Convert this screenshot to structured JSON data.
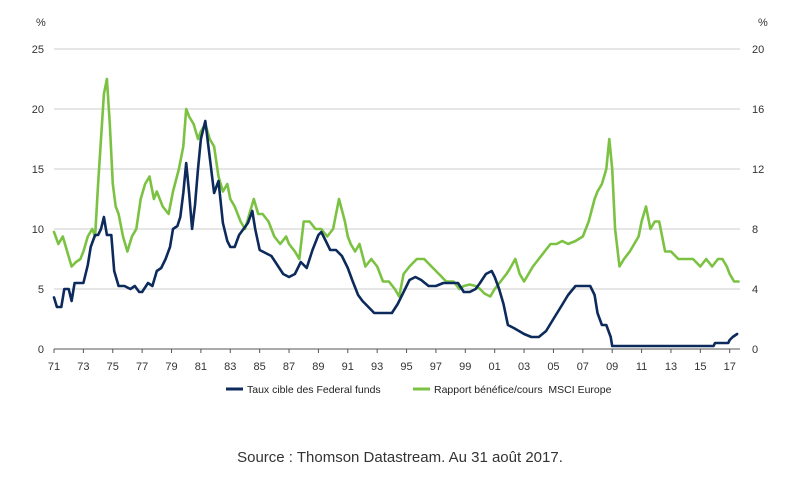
{
  "chart_data": {
    "type": "line",
    "title": "",
    "left_axis_unit": "%",
    "right_axis_unit": "%",
    "ylim_left": [
      0,
      25
    ],
    "ylim_right": [
      0,
      20
    ],
    "yticks_left": [
      0,
      5,
      10,
      15,
      20,
      25
    ],
    "yticks_right": [
      0,
      4,
      8,
      12,
      16,
      20
    ],
    "xlim": [
      1971,
      2017.7
    ],
    "x_ticks": [
      1971,
      1973,
      1975,
      1977,
      1979,
      1981,
      1983,
      1985,
      1987,
      1989,
      1991,
      1993,
      1995,
      1997,
      1999,
      2001,
      2003,
      2005,
      2007,
      2009,
      2011,
      2013,
      2015,
      2017
    ],
    "x_tick_labels": [
      "71",
      "73",
      "75",
      "77",
      "79",
      "81",
      "83",
      "85",
      "87",
      "89",
      "91",
      "93",
      "95",
      "97",
      "99",
      "01",
      "03",
      "05",
      "07",
      "09",
      "11",
      "13",
      "15",
      "17"
    ],
    "grid": "horizontal",
    "legend_position": "bottom",
    "colors": {
      "fed": "#0d2a5c",
      "msci": "#7cc242",
      "grid": "#cccccc",
      "axis": "#555555"
    },
    "series": [
      {
        "name": "Taux cible des Federal funds",
        "axis": "left",
        "x": [
          1971.0,
          1971.2,
          1971.5,
          1971.7,
          1972.0,
          1972.2,
          1972.4,
          1972.8,
          1973.0,
          1973.3,
          1973.5,
          1973.8,
          1974.0,
          1974.2,
          1974.4,
          1974.6,
          1974.9,
          1975.1,
          1975.4,
          1975.8,
          1976.2,
          1976.5,
          1976.8,
          1977.0,
          1977.4,
          1977.7,
          1978.0,
          1978.3,
          1978.6,
          1978.9,
          1979.1,
          1979.4,
          1979.6,
          1979.8,
          1980.0,
          1980.2,
          1980.4,
          1980.6,
          1980.8,
          1981.0,
          1981.3,
          1981.6,
          1981.9,
          1982.2,
          1982.5,
          1982.8,
          1983.0,
          1983.3,
          1983.6,
          1983.9,
          1984.2,
          1984.5,
          1984.7,
          1985.0,
          1985.4,
          1985.8,
          1986.2,
          1986.6,
          1987.0,
          1987.4,
          1987.8,
          1988.2,
          1988.6,
          1989.0,
          1989.2,
          1989.5,
          1989.8,
          1990.2,
          1990.6,
          1991.0,
          1991.3,
          1991.7,
          1992.0,
          1992.4,
          1992.8,
          1993.5,
          1994.0,
          1994.4,
          1994.8,
          1995.2,
          1995.6,
          1996.0,
          1996.5,
          1997.0,
          1997.5,
          1998.0,
          1998.5,
          1998.9,
          1999.3,
          1999.7,
          2000.0,
          2000.4,
          2000.8,
          2001.0,
          2001.3,
          2001.6,
          2001.9,
          2002.3,
          2003.0,
          2003.5,
          2004.0,
          2004.5,
          2005.0,
          2005.5,
          2006.0,
          2006.5,
          2007.0,
          2007.5,
          2007.8,
          2008.0,
          2008.3,
          2008.6,
          2008.9,
          2009.0,
          2010.0,
          2012.0,
          2014.0,
          2015.9,
          2016.0,
          2016.9,
          2017.0,
          2017.2,
          2017.5
        ],
        "values": [
          4.3,
          3.5,
          3.5,
          5.0,
          5.0,
          4.0,
          5.5,
          5.5,
          5.5,
          7.0,
          8.5,
          9.5,
          9.5,
          10.0,
          11.0,
          9.5,
          9.5,
          6.5,
          5.25,
          5.25,
          5.0,
          5.25,
          4.75,
          4.75,
          5.5,
          5.25,
          6.5,
          6.75,
          7.5,
          8.5,
          10.0,
          10.25,
          11.0,
          13.0,
          15.5,
          13.0,
          10.0,
          12.0,
          15.0,
          17.5,
          19.0,
          16.0,
          13.0,
          14.0,
          10.5,
          9.0,
          8.5,
          8.5,
          9.5,
          10.0,
          10.5,
          11.5,
          10.0,
          8.25,
          8.0,
          7.75,
          7.0,
          6.25,
          6.0,
          6.25,
          7.25,
          6.75,
          8.25,
          9.5,
          9.75,
          9.0,
          8.25,
          8.25,
          7.75,
          6.75,
          5.75,
          4.5,
          4.0,
          3.5,
          3.0,
          3.0,
          3.0,
          3.75,
          4.75,
          5.75,
          6.0,
          5.75,
          5.25,
          5.25,
          5.5,
          5.5,
          5.5,
          4.75,
          4.75,
          5.0,
          5.5,
          6.25,
          6.5,
          6.0,
          5.0,
          3.75,
          2.0,
          1.75,
          1.25,
          1.0,
          1.0,
          1.5,
          2.5,
          3.5,
          4.5,
          5.25,
          5.25,
          5.25,
          4.5,
          3.0,
          2.0,
          2.0,
          1.0,
          0.25,
          0.25,
          0.25,
          0.25,
          0.25,
          0.5,
          0.5,
          0.75,
          1.0,
          1.25
        ]
      },
      {
        "name": "Rapport bénéfice/cours  MSCI Europe",
        "axis": "right",
        "x": [
          1971.0,
          1971.3,
          1971.6,
          1971.9,
          1972.2,
          1972.5,
          1972.8,
          1973.0,
          1973.3,
          1973.6,
          1973.8,
          1974.0,
          1974.2,
          1974.4,
          1974.6,
          1974.8,
          1974.9,
          1975.0,
          1975.2,
          1975.4,
          1975.7,
          1976.0,
          1976.3,
          1976.6,
          1976.9,
          1977.2,
          1977.5,
          1977.8,
          1978.0,
          1978.4,
          1978.8,
          1979.1,
          1979.5,
          1979.8,
          1980.0,
          1980.2,
          1980.5,
          1980.8,
          1981.0,
          1981.3,
          1981.6,
          1981.9,
          1982.2,
          1982.5,
          1982.8,
          1983.0,
          1983.3,
          1983.7,
          1984.0,
          1984.3,
          1984.6,
          1984.9,
          1985.2,
          1985.6,
          1986.0,
          1986.4,
          1986.8,
          1987.0,
          1987.4,
          1987.7,
          1988.0,
          1988.4,
          1988.8,
          1989.2,
          1989.6,
          1990.0,
          1990.4,
          1990.8,
          1991.0,
          1991.2,
          1991.5,
          1991.8,
          1992.2,
          1992.6,
          1993.0,
          1993.4,
          1993.8,
          1994.2,
          1994.5,
          1994.8,
          1995.2,
          1995.7,
          1996.2,
          1996.7,
          1997.2,
          1997.7,
          1998.2,
          1998.6,
          1998.9,
          1999.3,
          1999.7,
          2000.0,
          2000.3,
          2000.7,
          2001.0,
          2001.4,
          2001.8,
          2002.0,
          2002.4,
          2002.7,
          2003.0,
          2003.3,
          2003.6,
          2004.0,
          2004.4,
          2004.8,
          2005.2,
          2005.6,
          2006.0,
          2006.5,
          2007.0,
          2007.4,
          2007.8,
          2008.0,
          2008.3,
          2008.6,
          2008.8,
          2009.0,
          2009.2,
          2009.5,
          2009.8,
          2010.2,
          2010.5,
          2010.8,
          2011.0,
          2011.3,
          2011.6,
          2011.9,
          2012.2,
          2012.6,
          2013.0,
          2013.5,
          2014.0,
          2014.5,
          2015.0,
          2015.4,
          2015.8,
          2016.2,
          2016.5,
          2016.8,
          2017.0,
          2017.3,
          2017.6
        ],
        "values": [
          7.8,
          7.0,
          7.5,
          6.5,
          5.5,
          5.8,
          6.0,
          6.5,
          7.5,
          8.0,
          7.5,
          11.0,
          14.0,
          17.0,
          18.0,
          15.0,
          13.0,
          11.0,
          9.5,
          9.0,
          7.5,
          6.5,
          7.5,
          8.0,
          10.0,
          11.0,
          11.5,
          10.0,
          10.5,
          9.5,
          9.0,
          10.5,
          12.0,
          13.5,
          16.0,
          15.5,
          15.0,
          14.0,
          14.5,
          15.0,
          14.0,
          13.5,
          11.5,
          10.5,
          11.0,
          10.0,
          9.5,
          8.5,
          8.0,
          9.0,
          10.0,
          9.0,
          9.0,
          8.5,
          7.5,
          7.0,
          7.5,
          7.0,
          6.5,
          6.0,
          8.5,
          8.5,
          8.0,
          8.0,
          7.5,
          8.0,
          10.0,
          8.5,
          7.5,
          7.0,
          6.5,
          7.0,
          5.5,
          6.0,
          5.5,
          4.5,
          4.5,
          4.0,
          3.5,
          5.0,
          5.5,
          6.0,
          6.0,
          5.5,
          5.0,
          4.5,
          4.5,
          4.0,
          4.2,
          4.3,
          4.2,
          4.0,
          3.7,
          3.5,
          4.0,
          4.5,
          5.0,
          5.3,
          6.0,
          5.0,
          4.5,
          5.0,
          5.5,
          6.0,
          6.5,
          7.0,
          7.0,
          7.2,
          7.0,
          7.2,
          7.5,
          8.5,
          10.0,
          10.5,
          11.0,
          12.0,
          14.0,
          12.0,
          8.0,
          5.5,
          6.0,
          6.5,
          7.0,
          7.5,
          8.5,
          9.5,
          8.0,
          8.5,
          8.5,
          6.5,
          6.5,
          6.0,
          6.0,
          6.0,
          5.5,
          6.0,
          5.5,
          6.0,
          6.0,
          5.5,
          5.0,
          4.5,
          4.5
        ]
      }
    ]
  },
  "source_text": "Source : Thomson Datastream. Au 31 août 2017."
}
